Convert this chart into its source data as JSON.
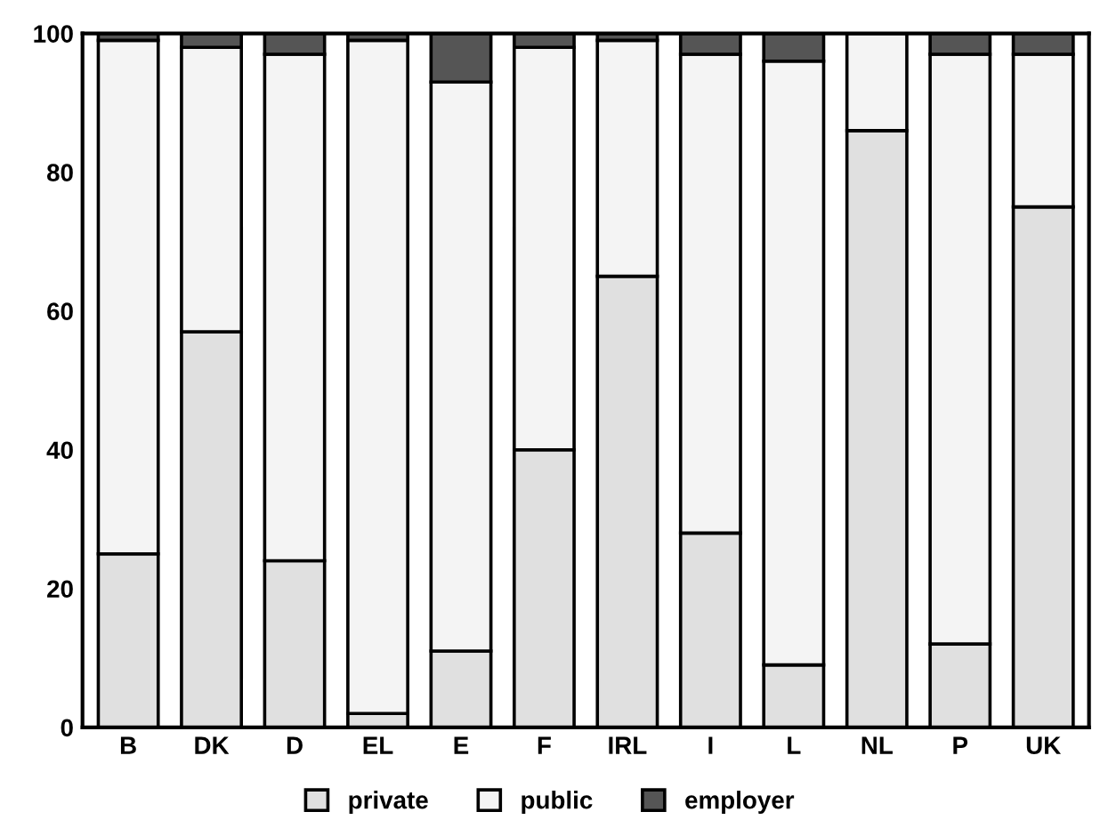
{
  "chart_data": {
    "type": "bar",
    "stacked": true,
    "categories": [
      "B",
      "DK",
      "D",
      "EL",
      "E",
      "F",
      "IRL",
      "I",
      "L",
      "NL",
      "P",
      "UK"
    ],
    "series": [
      {
        "name": "private",
        "color": "#e0e0e0",
        "values": [
          25,
          57,
          24,
          2,
          11,
          40,
          65,
          28,
          9,
          86,
          12,
          75
        ]
      },
      {
        "name": "public",
        "color": "#f4f4f4",
        "values": [
          74,
          41,
          73,
          97,
          82,
          58,
          34,
          69,
          87,
          14,
          85,
          22
        ]
      },
      {
        "name": "employer",
        "color": "#555555",
        "values": [
          1,
          2,
          3,
          1,
          7,
          2,
          1,
          3,
          4,
          null,
          3,
          3
        ]
      }
    ],
    "ylim": [
      0,
      100
    ],
    "yticks": [
      0,
      20,
      40,
      60,
      80,
      100
    ],
    "grid": false,
    "legend": "bottom"
  }
}
